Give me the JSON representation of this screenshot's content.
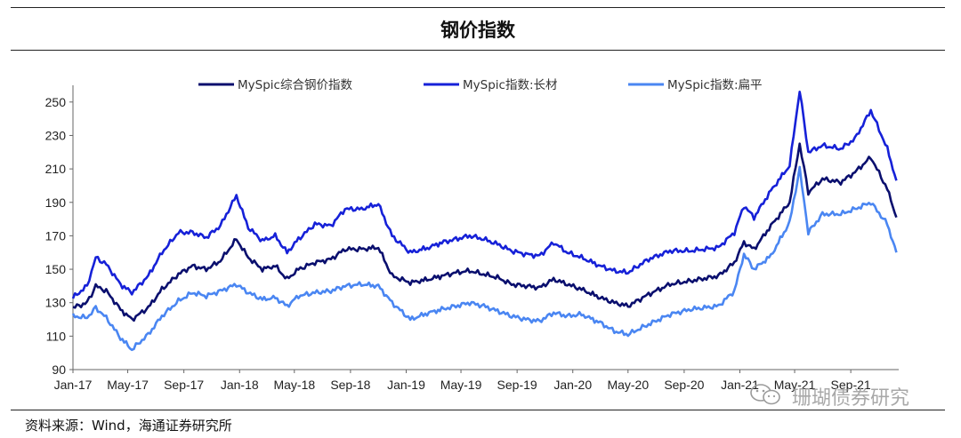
{
  "chart_data": {
    "type": "line",
    "title": "钢价指数",
    "ylim": [
      90,
      260
    ],
    "yticks": [
      90,
      110,
      130,
      150,
      170,
      190,
      210,
      230,
      250
    ],
    "xlim": [
      "2017-01-01",
      "2021-12-15"
    ],
    "xticks": [
      {
        "label": "Jan-17",
        "date": "2017-01-01"
      },
      {
        "label": "May-17",
        "date": "2017-05-01"
      },
      {
        "label": "Sep-17",
        "date": "2017-09-01"
      },
      {
        "label": "Jan-18",
        "date": "2018-01-01"
      },
      {
        "label": "May-18",
        "date": "2018-05-01"
      },
      {
        "label": "Sep-18",
        "date": "2018-09-01"
      },
      {
        "label": "Jan-19",
        "date": "2019-01-01"
      },
      {
        "label": "May-19",
        "date": "2019-05-01"
      },
      {
        "label": "Sep-19",
        "date": "2019-09-01"
      },
      {
        "label": "Jan-20",
        "date": "2020-01-01"
      },
      {
        "label": "May-20",
        "date": "2020-05-01"
      },
      {
        "label": "Sep-20",
        "date": "2020-09-01"
      },
      {
        "label": "Jan-21",
        "date": "2021-01-01"
      },
      {
        "label": "May-21",
        "date": "2021-05-01"
      },
      {
        "label": "Sep-21",
        "date": "2021-09-01"
      }
    ],
    "legend_position": "top",
    "series": [
      {
        "name": "MySpic综合钢价指数",
        "color": "#0a0f6e",
        "points": [
          [
            "2017-01-01",
            127
          ],
          [
            "2017-02-01",
            130
          ],
          [
            "2017-02-20",
            140
          ],
          [
            "2017-03-15",
            137
          ],
          [
            "2017-04-15",
            126
          ],
          [
            "2017-05-10",
            120
          ],
          [
            "2017-06-15",
            127
          ],
          [
            "2017-07-15",
            138
          ],
          [
            "2017-08-20",
            147
          ],
          [
            "2017-09-20",
            152
          ],
          [
            "2017-10-20",
            150
          ],
          [
            "2017-11-20",
            155
          ],
          [
            "2017-12-25",
            168
          ],
          [
            "2018-01-20",
            157
          ],
          [
            "2018-02-20",
            150
          ],
          [
            "2018-03-20",
            152
          ],
          [
            "2018-04-15",
            144
          ],
          [
            "2018-05-10",
            150
          ],
          [
            "2018-06-15",
            154
          ],
          [
            "2018-07-20",
            156
          ],
          [
            "2018-08-20",
            162
          ],
          [
            "2018-09-25",
            162
          ],
          [
            "2018-11-01",
            163
          ],
          [
            "2018-12-01",
            146
          ],
          [
            "2019-01-10",
            142
          ],
          [
            "2019-02-20",
            144
          ],
          [
            "2019-03-20",
            146
          ],
          [
            "2019-04-20",
            148
          ],
          [
            "2019-05-20",
            149
          ],
          [
            "2019-06-20",
            147
          ],
          [
            "2019-07-20",
            145
          ],
          [
            "2019-08-20",
            141
          ],
          [
            "2019-09-20",
            140
          ],
          [
            "2019-10-20",
            139
          ],
          [
            "2019-11-20",
            144
          ],
          [
            "2019-12-20",
            141
          ],
          [
            "2020-01-20",
            138
          ],
          [
            "2020-03-01",
            133
          ],
          [
            "2020-04-01",
            130
          ],
          [
            "2020-05-01",
            128
          ],
          [
            "2020-06-15",
            135
          ],
          [
            "2020-08-01",
            141
          ],
          [
            "2020-09-15",
            143
          ],
          [
            "2020-11-15",
            146
          ],
          [
            "2020-12-20",
            154
          ],
          [
            "2021-01-10",
            166
          ],
          [
            "2021-02-01",
            162
          ],
          [
            "2021-03-10",
            176
          ],
          [
            "2021-04-20",
            190
          ],
          [
            "2021-05-12",
            225
          ],
          [
            "2021-05-31",
            196
          ],
          [
            "2021-07-01",
            204
          ],
          [
            "2021-08-10",
            202
          ],
          [
            "2021-09-10",
            208
          ],
          [
            "2021-10-15",
            217
          ],
          [
            "2021-11-20",
            198
          ],
          [
            "2021-12-10",
            181
          ]
        ]
      },
      {
        "name": "MySpic指数:长材",
        "color": "#1621d8",
        "points": [
          [
            "2017-01-01",
            133
          ],
          [
            "2017-02-01",
            140
          ],
          [
            "2017-02-20",
            157
          ],
          [
            "2017-03-15",
            153
          ],
          [
            "2017-04-15",
            141
          ],
          [
            "2017-05-10",
            136
          ],
          [
            "2017-06-15",
            146
          ],
          [
            "2017-07-15",
            160
          ],
          [
            "2017-08-20",
            172
          ],
          [
            "2017-09-20",
            172
          ],
          [
            "2017-10-20",
            169
          ],
          [
            "2017-11-20",
            176
          ],
          [
            "2017-12-25",
            194
          ],
          [
            "2018-01-20",
            175
          ],
          [
            "2018-02-20",
            167
          ],
          [
            "2018-03-20",
            170
          ],
          [
            "2018-04-15",
            160
          ],
          [
            "2018-05-10",
            168
          ],
          [
            "2018-06-15",
            177
          ],
          [
            "2018-07-20",
            176
          ],
          [
            "2018-08-20",
            186
          ],
          [
            "2018-09-25",
            186
          ],
          [
            "2018-11-01",
            189
          ],
          [
            "2018-12-01",
            170
          ],
          [
            "2019-01-10",
            160
          ],
          [
            "2019-02-20",
            163
          ],
          [
            "2019-03-20",
            166
          ],
          [
            "2019-04-20",
            168
          ],
          [
            "2019-05-20",
            170
          ],
          [
            "2019-06-20",
            168
          ],
          [
            "2019-07-20",
            165
          ],
          [
            "2019-08-20",
            161
          ],
          [
            "2019-09-20",
            159
          ],
          [
            "2019-10-20",
            158
          ],
          [
            "2019-11-20",
            166
          ],
          [
            "2019-12-20",
            160
          ],
          [
            "2020-01-20",
            157
          ],
          [
            "2020-03-01",
            152
          ],
          [
            "2020-04-01",
            149
          ],
          [
            "2020-05-01",
            148
          ],
          [
            "2020-06-15",
            156
          ],
          [
            "2020-08-01",
            161
          ],
          [
            "2020-09-15",
            161
          ],
          [
            "2020-11-15",
            163
          ],
          [
            "2020-12-20",
            172
          ],
          [
            "2021-01-10",
            188
          ],
          [
            "2021-02-01",
            181
          ],
          [
            "2021-03-10",
            197
          ],
          [
            "2021-04-20",
            212
          ],
          [
            "2021-05-12",
            257
          ],
          [
            "2021-05-31",
            220
          ],
          [
            "2021-07-01",
            224
          ],
          [
            "2021-08-10",
            222
          ],
          [
            "2021-09-10",
            228
          ],
          [
            "2021-10-15",
            245
          ],
          [
            "2021-11-20",
            222
          ],
          [
            "2021-12-10",
            203
          ]
        ]
      },
      {
        "name": "MySpic指数:扁平",
        "color": "#4a86f2",
        "points": [
          [
            "2017-01-01",
            122
          ],
          [
            "2017-02-01",
            121
          ],
          [
            "2017-02-20",
            127
          ],
          [
            "2017-03-15",
            121
          ],
          [
            "2017-04-15",
            109
          ],
          [
            "2017-05-10",
            102
          ],
          [
            "2017-06-15",
            111
          ],
          [
            "2017-07-15",
            122
          ],
          [
            "2017-08-20",
            131
          ],
          [
            "2017-09-20",
            136
          ],
          [
            "2017-10-20",
            134
          ],
          [
            "2017-11-20",
            137
          ],
          [
            "2017-12-25",
            141
          ],
          [
            "2018-01-20",
            136
          ],
          [
            "2018-02-20",
            132
          ],
          [
            "2018-03-20",
            133
          ],
          [
            "2018-04-15",
            128
          ],
          [
            "2018-05-10",
            134
          ],
          [
            "2018-06-15",
            136
          ],
          [
            "2018-07-20",
            137
          ],
          [
            "2018-08-20",
            140
          ],
          [
            "2018-09-25",
            141
          ],
          [
            "2018-11-01",
            140
          ],
          [
            "2018-12-01",
            130
          ],
          [
            "2019-01-10",
            120
          ],
          [
            "2019-02-20",
            124
          ],
          [
            "2019-03-20",
            126
          ],
          [
            "2019-04-20",
            128
          ],
          [
            "2019-05-20",
            130
          ],
          [
            "2019-06-20",
            128
          ],
          [
            "2019-07-20",
            125
          ],
          [
            "2019-08-20",
            122
          ],
          [
            "2019-09-20",
            120
          ],
          [
            "2019-10-20",
            119
          ],
          [
            "2019-11-20",
            124
          ],
          [
            "2019-12-20",
            122
          ],
          [
            "2020-01-20",
            123
          ],
          [
            "2020-03-01",
            118
          ],
          [
            "2020-04-01",
            113
          ],
          [
            "2020-05-01",
            111
          ],
          [
            "2020-06-15",
            117
          ],
          [
            "2020-08-01",
            123
          ],
          [
            "2020-09-15",
            126
          ],
          [
            "2020-11-15",
            128
          ],
          [
            "2020-12-20",
            137
          ],
          [
            "2021-01-10",
            159
          ],
          [
            "2021-02-01",
            150
          ],
          [
            "2021-03-10",
            158
          ],
          [
            "2021-04-20",
            178
          ],
          [
            "2021-05-12",
            210
          ],
          [
            "2021-05-31",
            172
          ],
          [
            "2021-07-01",
            183
          ],
          [
            "2021-08-10",
            183
          ],
          [
            "2021-09-10",
            186
          ],
          [
            "2021-10-15",
            190
          ],
          [
            "2021-11-20",
            177
          ],
          [
            "2021-12-10",
            160
          ]
        ]
      }
    ]
  },
  "source_text": "资料来源：Wind，海通证券研究所",
  "watermark": {
    "text": "珊瑚债券研究",
    "icon": "wechat-icon"
  }
}
